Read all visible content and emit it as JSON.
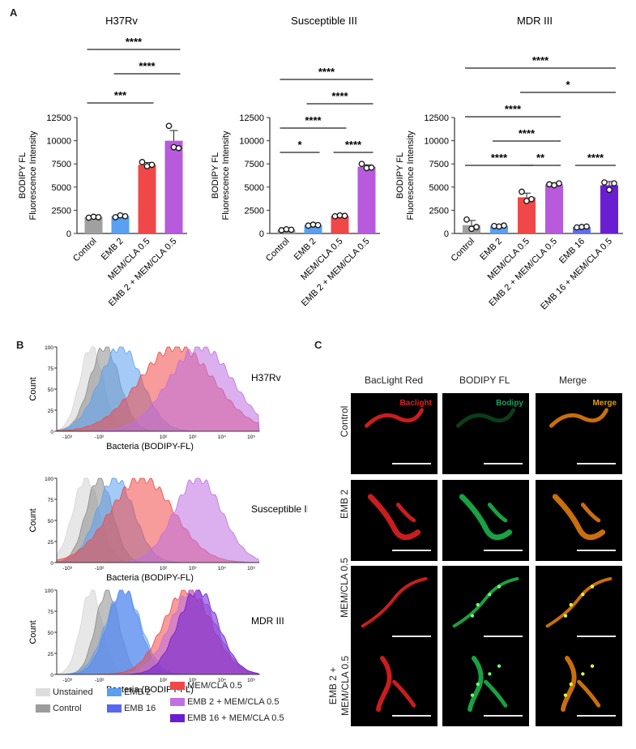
{
  "panels": {
    "A": "A",
    "B": "B",
    "C": "C"
  },
  "chart_data": [
    {
      "type": "bar",
      "title": "H37Rv",
      "ylabel": [
        "BODIPY FL",
        "Fluorescence Intensity"
      ],
      "ylim": [
        0,
        12500
      ],
      "yticks": [
        "0",
        "2500",
        "5000",
        "7500",
        "10000",
        "12500"
      ],
      "categories": [
        "Control",
        "EMB 2",
        "MEM/CLA 0.5",
        "EMB 2 + MEM/CLA 0.5"
      ],
      "values": [
        1750,
        1850,
        7400,
        10000
      ],
      "errors": [
        0,
        120,
        250,
        1100
      ],
      "points": [
        [
          1700,
          1800,
          1750
        ],
        [
          1750,
          1950,
          1850
        ],
        [
          7700,
          7250,
          7400
        ],
        [
          11600,
          9300,
          9200
        ]
      ],
      "colors": [
        "#a0a0a0",
        "#5aa0f0",
        "#f04848",
        "#b85adc"
      ],
      "significance": [
        {
          "from": 0,
          "to": 2,
          "label": "***"
        },
        {
          "from": 1,
          "to": 3,
          "label": "****"
        },
        {
          "from": 0,
          "to": 3,
          "label": "****"
        }
      ]
    },
    {
      "type": "bar",
      "title": "Susceptible III",
      "ylabel": [
        "BODIPY FL",
        "Fluorescence Intensity"
      ],
      "ylim": [
        0,
        12500
      ],
      "yticks": [
        "0",
        "2500",
        "5000",
        "7500",
        "10000",
        "12500"
      ],
      "categories": [
        "Control",
        "EMB 2",
        "MEM/CLA 0.5",
        "EMB 2 + MEM/CLA 0.5"
      ],
      "values": [
        400,
        900,
        1900,
        7200
      ],
      "errors": [
        0,
        80,
        60,
        200
      ],
      "points": [
        [
          350,
          450,
          400
        ],
        [
          850,
          950,
          900
        ],
        [
          1850,
          1950,
          1900
        ],
        [
          7500,
          7050,
          7100
        ]
      ],
      "colors": [
        "#a0a0a0",
        "#5aa0f0",
        "#f04848",
        "#b85adc"
      ],
      "significance": [
        {
          "from": 0,
          "to": 1,
          "label": "*"
        },
        {
          "from": 2,
          "to": 3,
          "label": "****"
        },
        {
          "from": 0,
          "to": 2,
          "label": "****"
        },
        {
          "from": 1,
          "to": 3,
          "label": "****"
        },
        {
          "from": 0,
          "to": 3,
          "label": "****"
        }
      ]
    },
    {
      "type": "bar",
      "title": "MDR III",
      "ylabel": [
        "BODIPY FL",
        "Fluorescence Intensity"
      ],
      "ylim": [
        0,
        12500
      ],
      "yticks": [
        "0",
        "2500",
        "5000",
        "7500",
        "10000",
        "12500"
      ],
      "categories": [
        "Control",
        "EMB 2",
        "MEM/CLA 0.5",
        "EMB 2 + MEM/CLA 0.5",
        "EMB 16",
        "EMB 16 + MEM/CLA 0.5"
      ],
      "values": [
        900,
        800,
        3900,
        5300,
        700,
        5200
      ],
      "errors": [
        500,
        50,
        450,
        150,
        80,
        400
      ],
      "points": [
        [
          1500,
          500,
          700
        ],
        [
          800,
          750,
          850
        ],
        [
          4500,
          3500,
          3700
        ],
        [
          5300,
          5200,
          5400
        ],
        [
          650,
          700,
          750
        ],
        [
          5500,
          4700,
          5400
        ]
      ],
      "colors": [
        "#a0a0a0",
        "#5aa0f0",
        "#f04848",
        "#b85adc",
        "#6070f0",
        "#6a1ed2"
      ],
      "significance": [
        {
          "from": 0,
          "to": 2,
          "label": "****"
        },
        {
          "from": 2,
          "to": 3,
          "label": "**"
        },
        {
          "from": 4,
          "to": 5,
          "label": "****"
        },
        {
          "from": 1,
          "to": 3,
          "label": "****"
        },
        {
          "from": 0,
          "to": 3,
          "label": "****"
        },
        {
          "from": 2,
          "to": 5,
          "label": "*"
        },
        {
          "from": 0,
          "to": 5,
          "label": "****"
        }
      ]
    }
  ],
  "histograms": {
    "xlabel": "Bacteria (BODIPY-FL)",
    "ylabel": "Count",
    "yticks": [
      "0",
      "25",
      "50",
      "75",
      "100"
    ],
    "xticks": [
      "-10³",
      "-10²",
      "10²",
      "10³",
      "10⁴",
      "10⁵"
    ],
    "plots": [
      {
        "title": "H37Rv",
        "curves": [
          {
            "name": "Unstained",
            "color": "#d4d4d4",
            "center": -1.05,
            "width": 0.22
          },
          {
            "name": "Control",
            "color": "#8c8c8c",
            "center": -0.8,
            "width": 0.28
          },
          {
            "name": "EMB 2",
            "color": "#5aa0f0",
            "center": -0.5,
            "width": 0.4
          },
          {
            "name": "MEM/CLA 0.5",
            "color": "#f04848",
            "center": 0.55,
            "width": 0.7
          },
          {
            "name": "EMB 2 + MEM/CLA 0.5",
            "color": "#c070e0",
            "center": 1.0,
            "width": 0.6
          }
        ]
      },
      {
        "title": "Susceptible III",
        "curves": [
          {
            "name": "Unstained",
            "color": "#d4d4d4",
            "center": -1.15,
            "width": 0.25
          },
          {
            "name": "Control",
            "color": "#8c8c8c",
            "center": -0.9,
            "width": 0.25
          },
          {
            "name": "EMB 2",
            "color": "#5aa0f0",
            "center": -0.6,
            "width": 0.35
          },
          {
            "name": "MEM/CLA 0.5",
            "color": "#f04848",
            "center": -0.1,
            "width": 0.6
          },
          {
            "name": "EMB 2 + MEM/CLA 0.5",
            "color": "#c070e0",
            "center": 0.95,
            "width": 0.45
          }
        ]
      },
      {
        "title": "MDR III",
        "curves": [
          {
            "name": "Unstained",
            "color": "#d4d4d4",
            "center": -1.05,
            "width": 0.2
          },
          {
            "name": "Control",
            "color": "#8c8c8c",
            "center": -0.75,
            "width": 0.22
          },
          {
            "name": "EMB 16",
            "color": "#5a66f0",
            "center": -0.45,
            "width": 0.3
          },
          {
            "name": "EMB 2",
            "color": "#5aa0f0",
            "center": -0.45,
            "width": 0.33
          },
          {
            "name": "MEM/CLA 0.5",
            "color": "#f04848",
            "center": 0.75,
            "width": 0.45
          },
          {
            "name": "EMB 2 + MEM/CLA 0.5",
            "color": "#c070e0",
            "center": 0.85,
            "width": 0.42
          },
          {
            "name": "EMB 16 + MEM/CLA 0.5",
            "color": "#6a1ed2",
            "center": 0.95,
            "width": 0.38
          }
        ]
      }
    ]
  },
  "legend": [
    {
      "label": "Unstained",
      "color": "#dcdcdc"
    },
    {
      "label": "Control",
      "color": "#9c9c9c"
    },
    {
      "label": "EMB 2",
      "color": "#5aa0f0"
    },
    {
      "label": "EMB 16",
      "color": "#5a66f0"
    },
    {
      "label": "MEM/CLA 0.5",
      "color": "#f04848"
    },
    {
      "label": "EMB 2 + MEM/CLA 0.5",
      "color": "#c070e0"
    },
    {
      "label": "EMB 16 + MEM/CLA 0.5",
      "color": "#6a1ed2"
    }
  ],
  "microscopy": {
    "columns": [
      "BacLight Red",
      "BODIPY FL",
      "Merge"
    ],
    "tags": [
      "Baclight",
      "Bodipy",
      "Merge"
    ],
    "tag_colors": [
      "#e02020",
      "#15a060",
      "#e0a000"
    ],
    "rows": [
      "Control",
      "EMB 2",
      "MEM/CLA 0.5",
      "EMB 2 + MEM/CLA 0.5"
    ]
  }
}
